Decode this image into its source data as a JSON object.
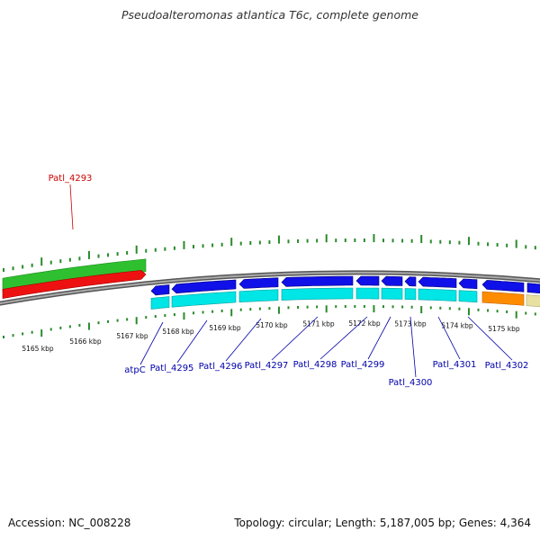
{
  "title": "Pseudoalteromonas atlantica T6c, complete genome",
  "footer": {
    "accession": "Accession: NC_008228",
    "summary": "Topology: circular; Length: 5,187,005 bp; Genes: 4,364"
  },
  "colors": {
    "forward_cds": "#2fc02f",
    "forward_gene": "#ee1111",
    "reverse_cds": "#1010e8",
    "reverse_gene": "#00e5e5",
    "other_cds": "#ff8c00",
    "other_gene": "#e8e0a0",
    "tick": "#2a8a2a",
    "forward_label": "#cc0000",
    "reverse_label": "#0000aa",
    "backbone": "#777777"
  },
  "kbp_labels": [
    "5165 kbp",
    "5166 kbp",
    "5167 kbp",
    "5168 kbp",
    "5169 kbp",
    "5170 kbp",
    "5171 kbp",
    "5172 kbp",
    "5173 kbp",
    "5174 kbp",
    "5175 kbp"
  ],
  "genes": [
    {
      "label": "Patl_4293",
      "strand": "forward"
    },
    {
      "label": "atpC",
      "strand": "reverse"
    },
    {
      "label": "Patl_4295",
      "strand": "reverse"
    },
    {
      "label": "Patl_4296",
      "strand": "reverse"
    },
    {
      "label": "Patl_4297",
      "strand": "reverse"
    },
    {
      "label": "Patl_4298",
      "strand": "reverse"
    },
    {
      "label": "Patl_4299",
      "strand": "reverse"
    },
    {
      "label": "Patl_4300",
      "strand": "reverse"
    },
    {
      "label": "Patl_4301",
      "strand": "reverse"
    },
    {
      "label": "Patl_4302",
      "strand": "reverse"
    }
  ]
}
